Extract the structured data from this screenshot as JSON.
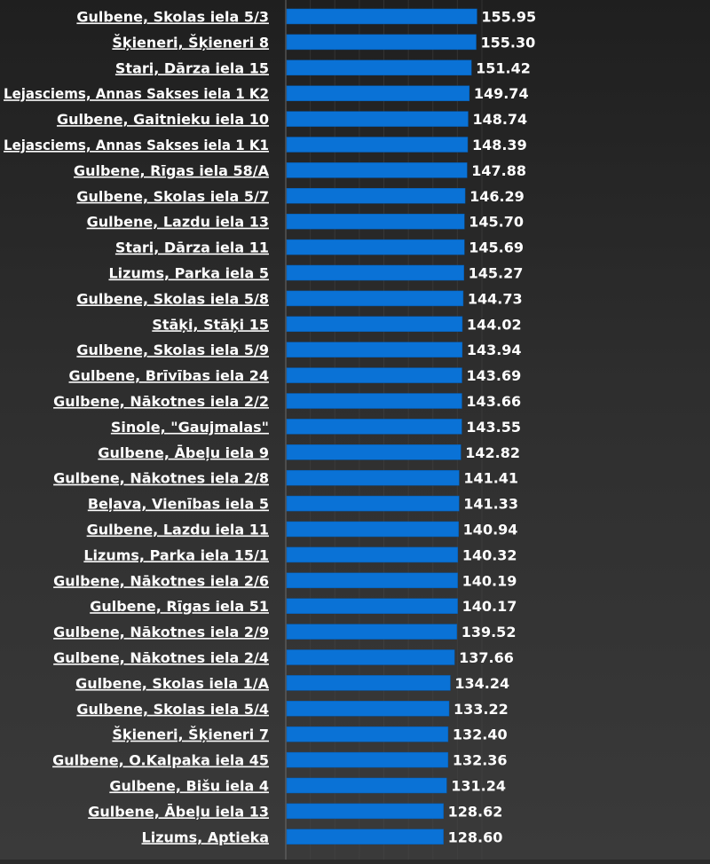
{
  "chart_data": {
    "type": "bar",
    "orientation": "horizontal",
    "title": "",
    "xlabel": "",
    "ylabel": "",
    "xlim": [
      0,
      160
    ],
    "grid": true,
    "legend": "none",
    "colors": {
      "bar": "#0a72d6",
      "bar_edge": "#055bb0",
      "label": "#ffffff",
      "grid": "#4a4a4a",
      "background": "#2a2a2a"
    },
    "categories": [
      "Gulbene, Skolas iela 5/3",
      "Šķieneri, Šķieneri 8",
      "Stari, Dārza iela 15",
      "Lejasciems, Annas Sakses iela 1 K2",
      "Gulbene, Gaitnieku iela 10",
      "Lejasciems, Annas Sakses iela 1 K1",
      "Gulbene, Rīgas iela 58/A",
      "Gulbene, Skolas iela 5/7",
      "Gulbene, Lazdu iela 13",
      "Stari, Dārza iela 11",
      "Lizums, Parka iela 5",
      "Gulbene, Skolas iela 5/8",
      "Stāķi, Stāķi 15",
      "Gulbene, Skolas iela 5/9",
      "Gulbene, Brīvības iela 24",
      "Gulbene, Nākotnes iela 2/2",
      "Sinole, \"Gaujmalas\"",
      "Gulbene, Ābeļu iela 9",
      "Gulbene, Nākotnes iela 2/8",
      "Beļava, Vienības iela 5",
      "Gulbene, Lazdu iela 11",
      "Lizums, Parka iela 15/1",
      "Gulbene, Nākotnes iela 2/6",
      "Gulbene, Rīgas iela 51",
      "Gulbene, Nākotnes iela 2/9",
      "Gulbene, Nākotnes iela 2/4",
      "Gulbene, Skolas iela 1/A",
      "Gulbene, Skolas iela 5/4",
      "Šķieneri, Šķieneri 7",
      "Gulbene, O.Kalpaka iela 45",
      "Gulbene, Bišu iela 4",
      "Gulbene, Ābeļu iela 13",
      "Lizums, Aptieka"
    ],
    "values": [
      155.95,
      155.3,
      151.42,
      149.74,
      148.74,
      148.39,
      147.88,
      146.29,
      145.7,
      145.69,
      145.27,
      144.73,
      144.02,
      143.94,
      143.69,
      143.66,
      143.55,
      142.82,
      141.41,
      141.33,
      140.94,
      140.32,
      140.19,
      140.17,
      139.52,
      137.66,
      134.24,
      133.22,
      132.4,
      132.36,
      131.24,
      128.62,
      128.6
    ],
    "value_labels": [
      "155.95",
      "155.30",
      "151.42",
      "149.74",
      "148.74",
      "148.39",
      "147.88",
      "146.29",
      "145.70",
      "145.69",
      "145.27",
      "144.73",
      "144.02",
      "143.94",
      "143.69",
      "143.66",
      "143.55",
      "142.82",
      "141.41",
      "141.33",
      "140.94",
      "140.32",
      "140.19",
      "140.17",
      "139.52",
      "137.66",
      "134.24",
      "133.22",
      "132.40",
      "132.36",
      "131.24",
      "128.62",
      "128.60"
    ]
  }
}
